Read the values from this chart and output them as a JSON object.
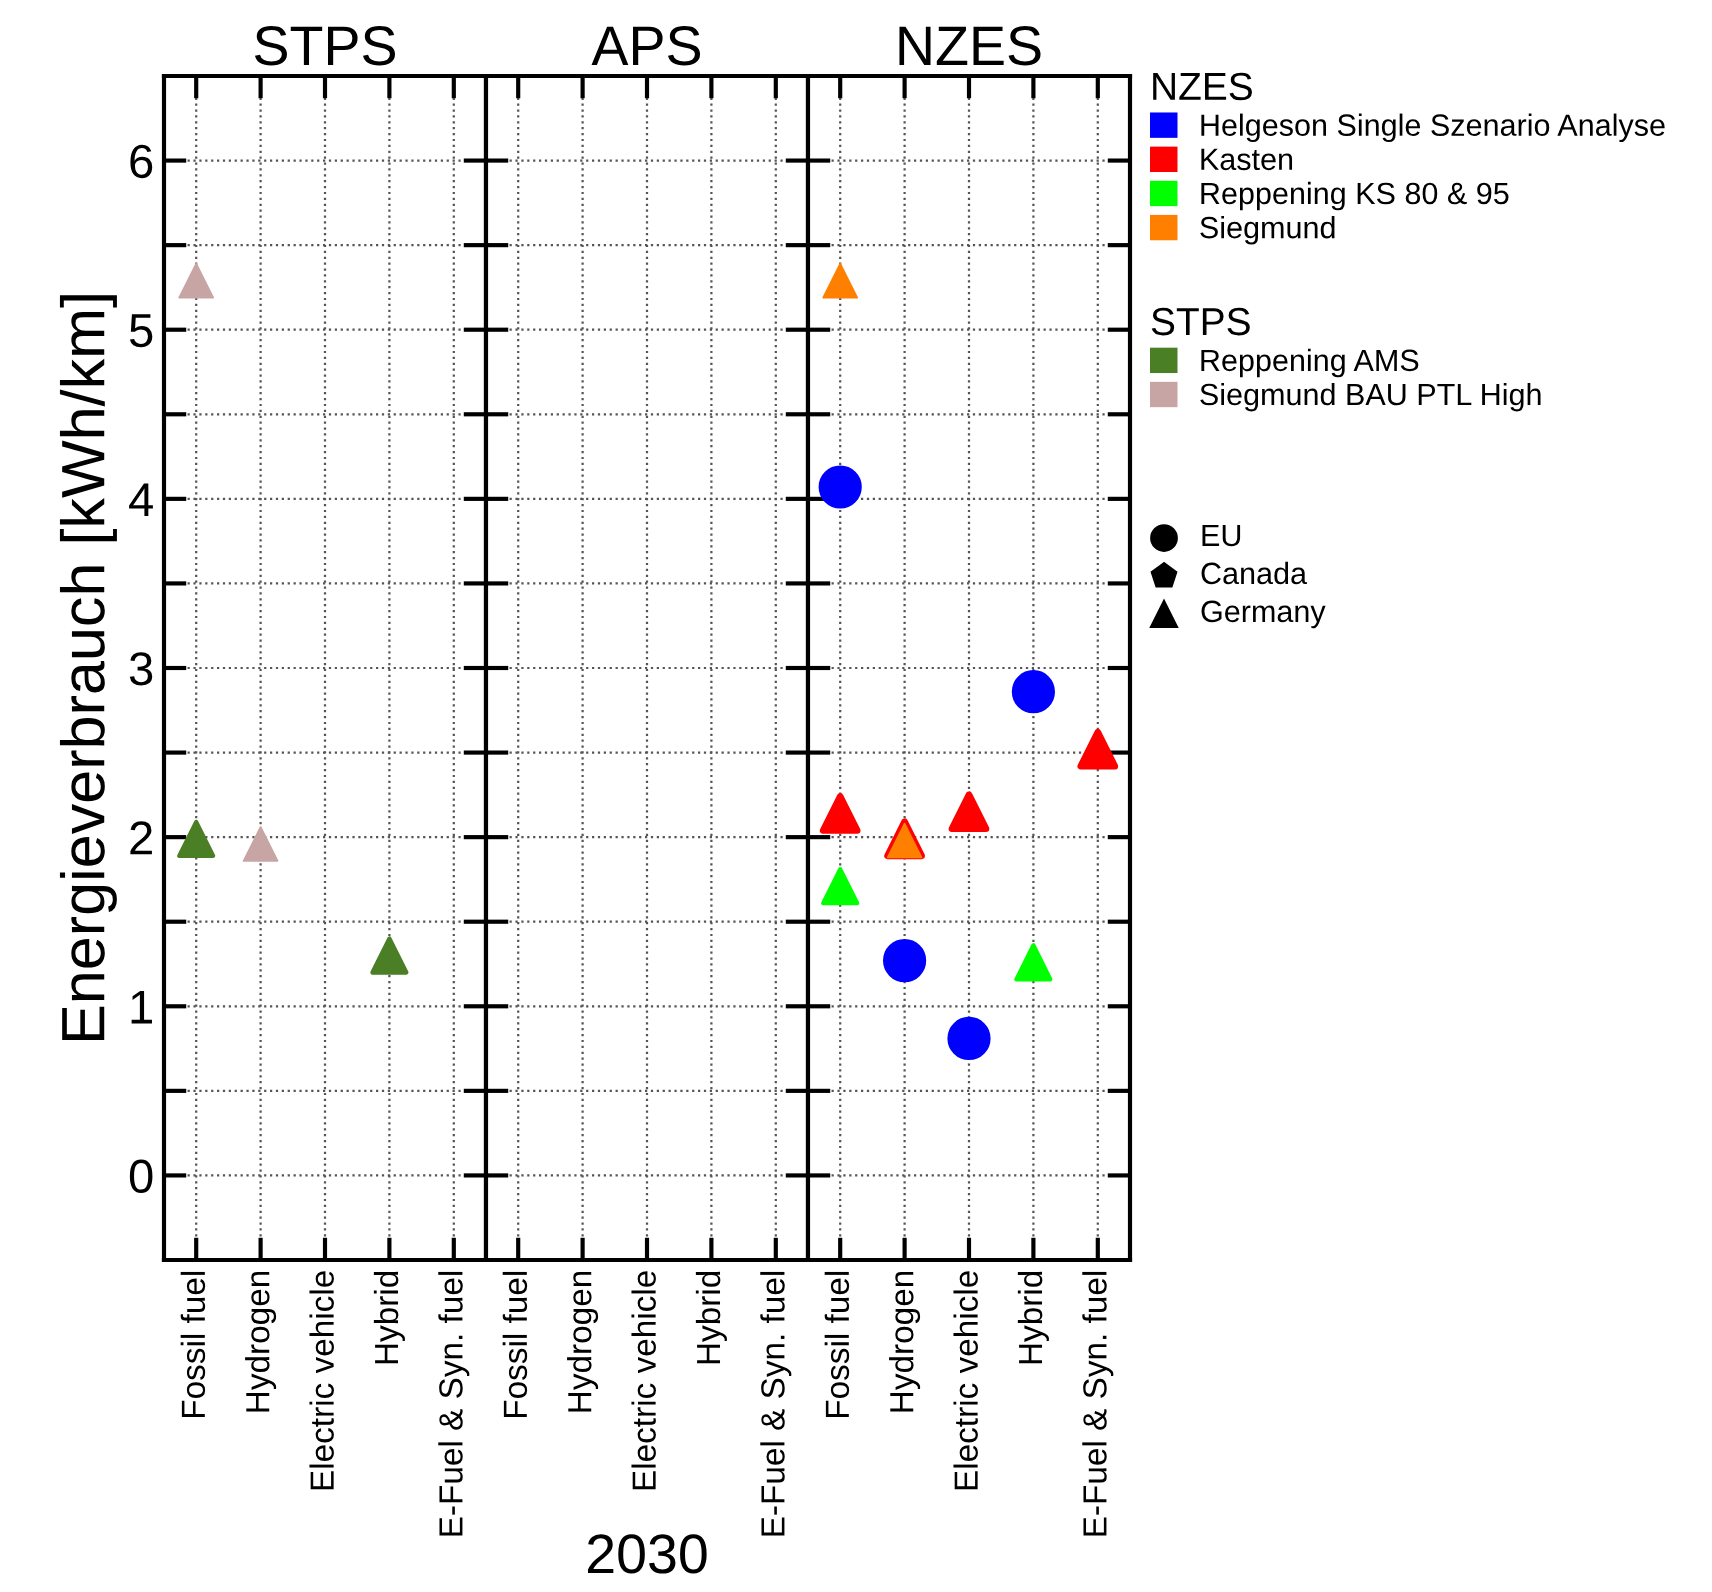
{
  "chart_data": [
    {
      "type": "scatter",
      "title": "STPS",
      "ylabel": "Energieverbrauch [kWh/km]",
      "categories": [
        "Fossil fuel",
        "Hydrogen",
        "Electric vehicle",
        "Hybrid",
        "E-Fuel & Syn. fuel"
      ],
      "ylim": [
        -0.5,
        6.5
      ],
      "yticks": [
        0,
        {
          "value": 0.5,
          "label": null
        },
        1,
        {
          "value": 1.5,
          "label": null
        },
        2,
        {
          "value": 2.5,
          "label": null
        },
        3,
        {
          "value": 3.5,
          "label": null
        },
        4,
        {
          "value": 4.5,
          "label": null
        },
        5,
        {
          "value": 5.5,
          "label": null
        },
        6
      ],
      "grid": true,
      "legend": "right",
      "legend_title": "STPS",
      "line_style": "dotted",
      "series": [
        {
          "name": "Reppening AMS",
          "color": "#4a7f26",
          "marker": "triangle",
          "values": [
            1.99,
            null,
            null,
            1.3,
            null
          ]
        },
        {
          "name": "Siegmund BAU PTL High",
          "color": "#c8a5a5",
          "marker": "triangle",
          "values": [
            5.29,
            1.96,
            null,
            null,
            null
          ]
        }
      ]
    },
    {
      "type": "scatter",
      "title": "APS",
      "xlabel": "2030",
      "categories": [
        "Fossil fuel",
        "Hydrogen",
        "Electric vehicle",
        "Hybrid",
        "E-Fuel & Syn. fuel"
      ],
      "ylim": [
        -0.5,
        6.5
      ],
      "yticks": [
        0,
        {
          "value": 0.5,
          "label": null
        },
        1,
        {
          "value": 1.5,
          "label": null
        },
        2,
        {
          "value": 2.5,
          "label": null
        },
        3,
        {
          "value": 3.5,
          "label": null
        },
        4,
        {
          "value": 4.5,
          "label": null
        },
        5,
        {
          "value": 5.5,
          "label": null
        },
        6
      ],
      "grid": true,
      "tick_labels": "x",
      "line_style": "dotted"
    },
    {
      "type": "scatter",
      "title": "NZES",
      "categories": [
        "Fossil fuel",
        "Hydrogen",
        "Electric vehicle",
        "Hybrid",
        "E-Fuel & Syn. fuel"
      ],
      "ylim": [
        -0.5,
        6.5
      ],
      "yticks": [
        0,
        {
          "value": 0.5,
          "label": null
        },
        1,
        {
          "value": 1.5,
          "label": null
        },
        2,
        {
          "value": 2.5,
          "label": null
        },
        3,
        {
          "value": 3.5,
          "label": null
        },
        4,
        {
          "value": 4.5,
          "label": null
        },
        5,
        {
          "value": 5.5,
          "label": null
        },
        6
      ],
      "grid": true,
      "tick_labels": "x",
      "legend": "right",
      "legend_title": "NZES",
      "line_style": "dotted",
      "series": [
        {
          "name": "Helgeson Single Szenario Analyse",
          "color": "#0000ff",
          "marker": "circle",
          "values": [
            4.07,
            1.27,
            0.81,
            2.86,
            null
          ]
        },
        {
          "name": "Kasten",
          "color": "#ff0000",
          "marker": "triangle",
          "values": [
            2.14,
            1.99,
            2.15,
            null,
            2.52
          ]
        },
        {
          "name": "Reppening KS 80 & 95",
          "color": "#00ff00",
          "marker": "triangle",
          "values": [
            1.71,
            null,
            null,
            1.26,
            null
          ]
        },
        {
          "name": "Siegmund",
          "color": "#ff8000",
          "marker": "triangle",
          "values": [
            5.29,
            1.98,
            null,
            null,
            null
          ]
        }
      ],
      "annotations": [
        "EU",
        "Canada",
        "Germany"
      ]
    }
  ]
}
